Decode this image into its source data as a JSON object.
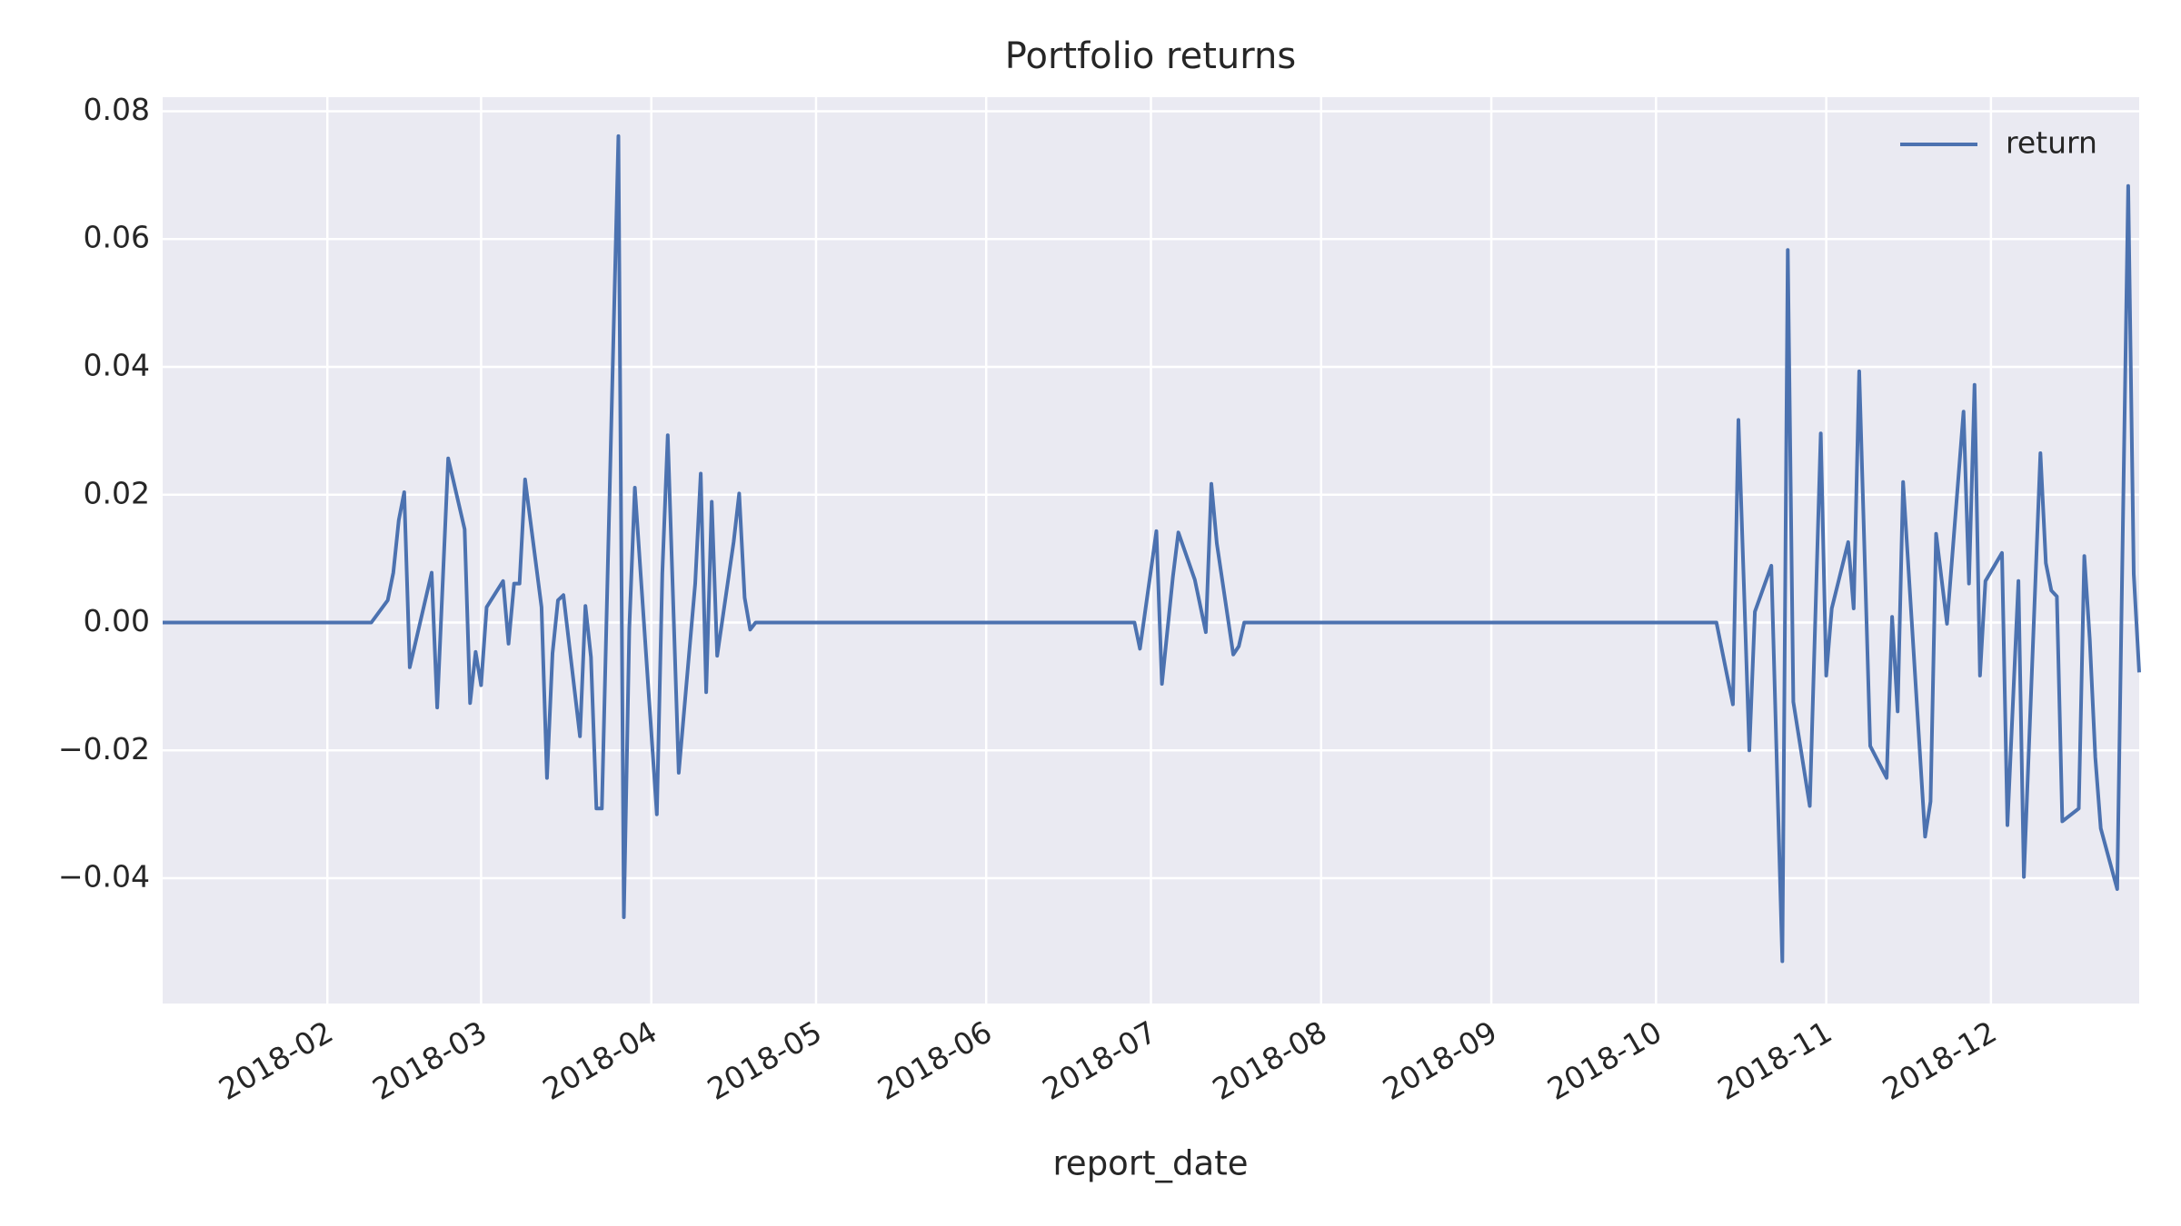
{
  "chart_data": {
    "type": "line",
    "title": "Portfolio returns",
    "xlabel": "report_date",
    "x": [
      1,
      39,
      42,
      43,
      44,
      45,
      46,
      50,
      51,
      53,
      56,
      57,
      58,
      59,
      60,
      63,
      64,
      65,
      66,
      67,
      70,
      71,
      72,
      73,
      74,
      77,
      78,
      79,
      80,
      81,
      84,
      85,
      86,
      87,
      91,
      92,
      93,
      95,
      98,
      99,
      100,
      101,
      102,
      105,
      106,
      107,
      108,
      109,
      178,
      179,
      182,
      183,
      185,
      186,
      189,
      191,
      192,
      193,
      196,
      197,
      198,
      284,
      287,
      288,
      290,
      291,
      294,
      296,
      297,
      298,
      301,
      303,
      304,
      305,
      308,
      309,
      310,
      312,
      315,
      316,
      317,
      318,
      322,
      323,
      324,
      326,
      329,
      330,
      331,
      332,
      333,
      336,
      337,
      339,
      340,
      343,
      344,
      345,
      346,
      347,
      350,
      351,
      352,
      353,
      354,
      357,
      359,
      360,
      361
    ],
    "series": [
      {
        "name": "return",
        "color": "#4c72b0",
        "values": [
          0,
          0,
          0.0035,
          0.0078,
          0.016,
          0.0204,
          -0.007,
          0.0078,
          -0.0133,
          0.0257,
          0.0146,
          -0.0126,
          -0.0046,
          -0.0098,
          0.0024,
          0.0065,
          -0.0033,
          0.0061,
          0.0061,
          0.0224,
          0.0024,
          -0.0243,
          -0.0048,
          0.0035,
          0.0043,
          -0.0178,
          0.0026,
          -0.0054,
          -0.0291,
          -0.0291,
          0.0761,
          -0.0461,
          -0.0009,
          0.0211,
          -0.03,
          0.0076,
          0.0293,
          -0.0235,
          0.0061,
          0.0233,
          -0.0109,
          0.0189,
          -0.0052,
          0.0126,
          0.0202,
          0.0039,
          -0.0011,
          0,
          0,
          -0.0041,
          0.0143,
          -0.0096,
          0.0072,
          0.0141,
          0.0067,
          -0.0015,
          0.0217,
          0.0124,
          -0.005,
          -0.0037,
          0,
          0,
          -0.0128,
          0.0317,
          -0.02,
          0.0017,
          0.0089,
          -0.053,
          0.0583,
          -0.0124,
          -0.0287,
          0.0296,
          -0.0083,
          0.0022,
          0.0126,
          0.0022,
          0.0393,
          -0.0193,
          -0.0243,
          0.0009,
          -0.0139,
          0.022,
          -0.0335,
          -0.028,
          0.0139,
          -0.0002,
          0.033,
          0.0061,
          0.0372,
          -0.0083,
          0.0065,
          0.0109,
          -0.0317,
          0.0065,
          -0.0398,
          0.0265,
          0.0093,
          0.005,
          0.0041,
          -0.0311,
          -0.0291,
          0.0104,
          -0.0026,
          -0.0211,
          -0.0322,
          -0.0417,
          0.0683,
          0.0076,
          -0.0078
        ]
      }
    ],
    "xlim": [
      1,
      361
    ],
    "xticks": [
      {
        "value": 31,
        "label": "2018-02"
      },
      {
        "value": 59,
        "label": "2018-03"
      },
      {
        "value": 90,
        "label": "2018-04"
      },
      {
        "value": 120,
        "label": "2018-05"
      },
      {
        "value": 151,
        "label": "2018-06"
      },
      {
        "value": 181,
        "label": "2018-07"
      },
      {
        "value": 212,
        "label": "2018-08"
      },
      {
        "value": 243,
        "label": "2018-09"
      },
      {
        "value": 273,
        "label": "2018-10"
      },
      {
        "value": 304,
        "label": "2018-11"
      },
      {
        "value": 334,
        "label": "2018-12"
      }
    ],
    "ylim": [
      -0.0596,
      0.0822
    ],
    "yticks": [
      {
        "value": -0.04,
        "label": "−0.04"
      },
      {
        "value": -0.02,
        "label": "−0.02"
      },
      {
        "value": 0,
        "label": "0.00"
      },
      {
        "value": 0.02,
        "label": "0.02"
      },
      {
        "value": 0.04,
        "label": "0.04"
      },
      {
        "value": 0.06,
        "label": "0.06"
      },
      {
        "value": 0.08,
        "label": "0.08"
      }
    ],
    "grid": true,
    "legend": "upper right"
  }
}
